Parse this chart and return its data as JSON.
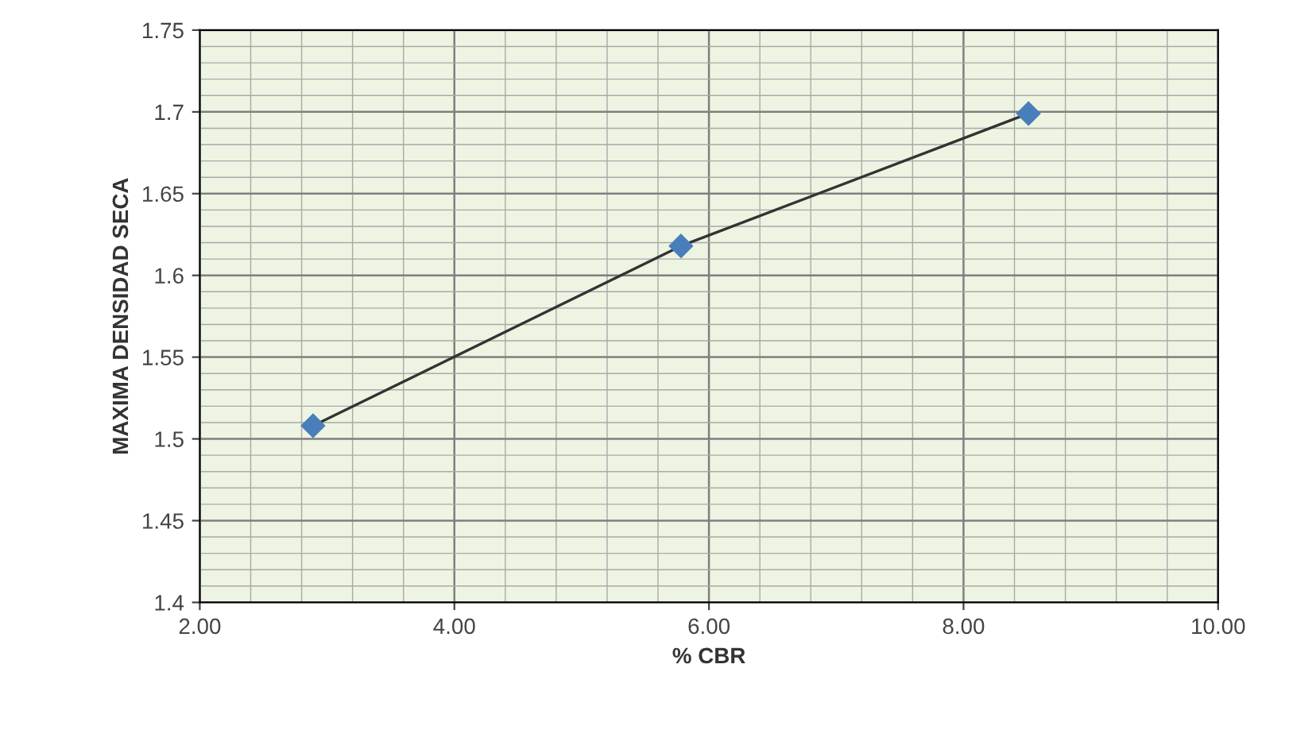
{
  "chart_data": {
    "type": "line",
    "xlabel": "% CBR",
    "ylabel": "MAXIMA DENSIDAD SECA",
    "x": [
      2.89,
      5.78,
      8.51
    ],
    "series": [
      {
        "color": "#4a7ebb",
        "values": [
          1.508,
          1.618,
          1.699
        ]
      }
    ],
    "marker": "diamond",
    "line_style": "solid",
    "grid": true,
    "xlim": [
      2,
      10
    ],
    "xticks": [
      {
        "value": 2,
        "label": "2.00"
      },
      {
        "value": 4,
        "label": "4.00"
      },
      {
        "value": 6,
        "label": "6.00"
      },
      {
        "value": 8,
        "label": "8.00"
      },
      {
        "value": 10,
        "label": "10.00"
      }
    ],
    "ylim": [
      1.4,
      1.75
    ],
    "yticks": [
      1.4,
      1.45,
      1.5,
      1.55,
      1.6,
      1.65,
      1.7,
      1.75
    ]
  }
}
